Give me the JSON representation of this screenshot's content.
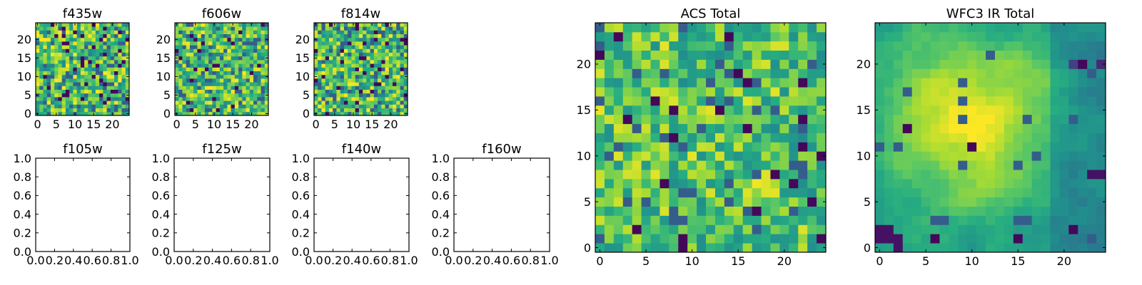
{
  "figure": {
    "description_note": "matplotlib multi-panel figure of pixel maps per HST filter",
    "colormap": "viridis",
    "colors": {
      "axes": "#000000",
      "background": "#ffffff"
    }
  },
  "chart_data": [
    {
      "type": "heatmap",
      "title": "f435w",
      "grid": [
        25,
        25
      ],
      "xlim": [
        -0.5,
        24.5
      ],
      "ylim": [
        -0.5,
        24.5
      ],
      "xticks": [
        "0",
        "5",
        "10",
        "15",
        "20"
      ],
      "yticks": [
        "0",
        "5",
        "10",
        "15",
        "20"
      ],
      "value_range": [
        0,
        1
      ],
      "texture": "pixel noise",
      "seed": 11,
      "smooth": 0,
      "dark_fraction": 0.05
    },
    {
      "type": "heatmap",
      "title": "f606w",
      "grid": [
        25,
        25
      ],
      "xlim": [
        -0.5,
        24.5
      ],
      "ylim": [
        -0.5,
        24.5
      ],
      "xticks": [
        "0",
        "5",
        "10",
        "15",
        "20"
      ],
      "yticks": [
        "0",
        "5",
        "10",
        "15",
        "20"
      ],
      "value_range": [
        0,
        1
      ],
      "texture": "pixel noise",
      "seed": 23,
      "smooth": 0,
      "dark_fraction": 0.05
    },
    {
      "type": "heatmap",
      "title": "f814w",
      "grid": [
        25,
        25
      ],
      "xlim": [
        -0.5,
        24.5
      ],
      "ylim": [
        -0.5,
        24.5
      ],
      "xticks": [
        "0",
        "5",
        "10",
        "15",
        "20"
      ],
      "yticks": [
        "0",
        "5",
        "10",
        "15",
        "20"
      ],
      "value_range": [
        0,
        1
      ],
      "texture": "pixel noise",
      "seed": 37,
      "smooth": 0,
      "dark_fraction": 0.05
    },
    {
      "type": "empty",
      "title": "f105w",
      "xlim": [
        0,
        1
      ],
      "ylim": [
        0,
        1
      ],
      "xticks": [
        "0.0",
        "0.2",
        "0.4",
        "0.6",
        "0.8",
        "1.0"
      ],
      "yticks": [
        "0.0",
        "0.2",
        "0.4",
        "0.6",
        "0.8",
        "1.0"
      ]
    },
    {
      "type": "empty",
      "title": "f125w",
      "xlim": [
        0,
        1
      ],
      "ylim": [
        0,
        1
      ],
      "xticks": [
        "0.0",
        "0.2",
        "0.4",
        "0.6",
        "0.8",
        "1.0"
      ],
      "yticks": [
        "0.0",
        "0.2",
        "0.4",
        "0.6",
        "0.8",
        "1.0"
      ]
    },
    {
      "type": "empty",
      "title": "f140w",
      "xlim": [
        0,
        1
      ],
      "ylim": [
        0,
        1
      ],
      "xticks": [
        "0.0",
        "0.2",
        "0.4",
        "0.6",
        "0.8",
        "1.0"
      ],
      "yticks": [
        "0.0",
        "0.2",
        "0.4",
        "0.6",
        "0.8",
        "1.0"
      ]
    },
    {
      "type": "empty",
      "title": "f160w",
      "xlim": [
        0,
        1
      ],
      "ylim": [
        0,
        1
      ],
      "xticks": [
        "0.0",
        "0.2",
        "0.4",
        "0.6",
        "0.8",
        "1.0"
      ],
      "yticks": [
        "0.0",
        "0.2",
        "0.4",
        "0.6",
        "0.8",
        "1.0"
      ]
    },
    {
      "type": "heatmap",
      "title": "ACS Total",
      "grid": [
        25,
        25
      ],
      "xlim": [
        -0.5,
        24.5
      ],
      "ylim": [
        -0.5,
        24.5
      ],
      "xticks": [
        "0",
        "5",
        "10",
        "15",
        "20"
      ],
      "yticks": [
        "0",
        "5",
        "10",
        "15",
        "20"
      ],
      "value_range": [
        0,
        1
      ],
      "texture": "pixel noise",
      "seed": 53,
      "smooth": 0.15,
      "dark_fraction": 0.03
    },
    {
      "type": "heatmap",
      "title": "WFC3 IR Total",
      "grid": [
        25,
        25
      ],
      "xlim": [
        -0.5,
        24.5
      ],
      "ylim": [
        -0.5,
        24.5
      ],
      "xticks": [
        "0",
        "5",
        "10",
        "15",
        "20"
      ],
      "yticks": [
        "0",
        "5",
        "10",
        "15",
        "20"
      ],
      "value_range": [
        0,
        1
      ],
      "texture": "smooth blob, bright centre",
      "seed": 71,
      "smooth": 0.6,
      "dark_fraction": 0.01,
      "bright_center": [
        10,
        14
      ]
    }
  ]
}
